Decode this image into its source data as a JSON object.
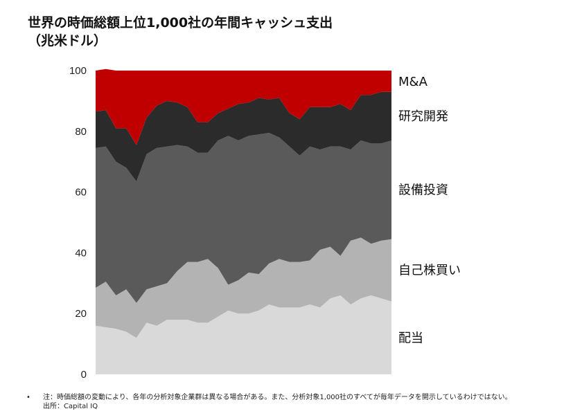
{
  "chart_data": {
    "type": "area",
    "stacked": true,
    "title": "世界の時価総額上位1,000社の年間キャッシュ支出",
    "unit": "（兆米ドル）",
    "ylim": [
      0,
      100
    ],
    "yticks": [
      "0",
      "20",
      "40",
      "60",
      "80",
      "100"
    ],
    "grid": false,
    "legend": "right, labels beside series",
    "series": [
      {
        "name": "配当",
        "color": "#d9d9d9",
        "values": [
          16,
          15.5,
          15,
          14,
          12,
          17,
          16,
          18,
          18,
          18,
          17,
          17,
          19,
          21,
          20,
          20,
          21,
          23,
          22,
          22,
          22,
          23,
          22,
          25,
          26,
          23,
          25,
          26,
          25,
          24
        ]
      },
      {
        "name": "自己株買い",
        "color": "#b3b3b3",
        "values": [
          12.5,
          15,
          11,
          14,
          11.5,
          11,
          13,
          12,
          16,
          19,
          20,
          21,
          16,
          8.5,
          11,
          13.5,
          12,
          13.5,
          16,
          15,
          15,
          14.5,
          19,
          17,
          13,
          21,
          20,
          17,
          19,
          20.5
        ]
      },
      {
        "name": "設備投資",
        "color": "#5a5a5a",
        "values": [
          46,
          44.5,
          44,
          40,
          40,
          44.5,
          45.5,
          45,
          41.5,
          38,
          36,
          35,
          42,
          49,
          46,
          45,
          46,
          43,
          40,
          38,
          35,
          37.5,
          33,
          33,
          36,
          30,
          32,
          33,
          32,
          32.5
        ]
      },
      {
        "name": "研究開発",
        "color": "#2b2b2b",
        "values": [
          12,
          12,
          11,
          13,
          12,
          12,
          14,
          15,
          14,
          13,
          10,
          10,
          9,
          9,
          12,
          11,
          12,
          11,
          13,
          11,
          12,
          13,
          14,
          13,
          14,
          13,
          15,
          16,
          17,
          16
        ]
      },
      {
        "name": "M&A",
        "color": "#c00000",
        "values": [
          13.5,
          13.5,
          19,
          19,
          24.5,
          15.5,
          11.5,
          10,
          10.5,
          12,
          17,
          17,
          14,
          12.5,
          11,
          10.5,
          9,
          9.5,
          9,
          14,
          16,
          12,
          12,
          12,
          11,
          13,
          8,
          8,
          7,
          7
        ]
      }
    ]
  },
  "footer": {
    "bullet": "•",
    "note": "注：時価総額の変動により、各年の分析対象企業群は異なる場合がある。また、分析対象1,000社のすべてが毎年データを開示しているわけではない。",
    "source": "出所：Capital IQ"
  }
}
